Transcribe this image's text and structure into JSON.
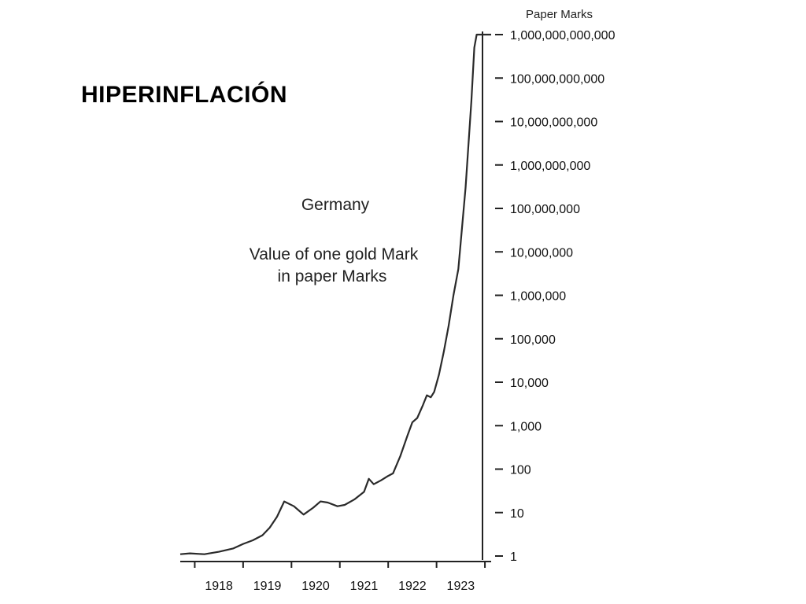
{
  "slide": {
    "title": "HIPERINFLACIÓN"
  },
  "chart_data": {
    "type": "line",
    "title": "Germany",
    "subtitle_lines": [
      "Value of one gold Mark",
      "in paper Marks"
    ],
    "y_unit_label": "Paper Marks",
    "xlabel": "",
    "ylabel": "",
    "y_scale": "log",
    "ylim": [
      1,
      1000000000000
    ],
    "xlim": [
      1917.7,
      1923.95
    ],
    "y_ticks": [
      {
        "value": 1,
        "label": "1"
      },
      {
        "value": 10,
        "label": "10"
      },
      {
        "value": 100,
        "label": "100"
      },
      {
        "value": 1000,
        "label": "1,000"
      },
      {
        "value": 10000,
        "label": "10,000"
      },
      {
        "value": 100000,
        "label": "100,000"
      },
      {
        "value": 1000000,
        "label": "1,000,000"
      },
      {
        "value": 10000000,
        "label": "10,000,000"
      },
      {
        "value": 100000000,
        "label": "100,000,000"
      },
      {
        "value": 1000000000,
        "label": "1,000,000,000"
      },
      {
        "value": 10000000000,
        "label": "10,000,000,000"
      },
      {
        "value": 100000000000,
        "label": "100,000,000,000"
      },
      {
        "value": 1000000000000,
        "label": "1,000,000,000,000"
      }
    ],
    "x_ticks": [
      1918,
      1919,
      1920,
      1921,
      1922,
      1923
    ],
    "x_ticks_at_boundaries": [
      1918,
      1919,
      1920,
      1921,
      1922,
      1923,
      1924
    ],
    "grid": false,
    "series": [
      {
        "x": [
          1917.7,
          1917.9,
          1918.2,
          1918.5,
          1918.8,
          1919.0,
          1919.2,
          1919.4,
          1919.55,
          1919.7,
          1919.85,
          1920.05,
          1920.25,
          1920.45,
          1920.6,
          1920.75,
          1920.95,
          1921.1,
          1921.3,
          1921.5,
          1921.6,
          1921.7,
          1921.85,
          1922.0,
          1922.1,
          1922.25,
          1922.4,
          1922.5,
          1922.6,
          1922.72,
          1922.8,
          1922.88,
          1922.95,
          1923.05,
          1923.15,
          1923.25,
          1923.35,
          1923.45,
          1923.52,
          1923.6,
          1923.66,
          1923.72,
          1923.78,
          1923.83,
          1923.88,
          1923.95
        ],
        "y": [
          1.1,
          1.15,
          1.1,
          1.25,
          1.5,
          1.9,
          2.3,
          3.0,
          4.5,
          8,
          18,
          14,
          9,
          13,
          18,
          17,
          14,
          15,
          20,
          30,
          60,
          45,
          55,
          70,
          80,
          200,
          600,
          1200,
          1500,
          3000,
          5000,
          4500,
          6000,
          15000,
          50000,
          200000,
          1000000,
          4000000,
          30000000,
          300000000,
          3000000000,
          30000000000,
          500000000000,
          1000000000000,
          1000000000000,
          1000000000000
        ]
      }
    ]
  }
}
